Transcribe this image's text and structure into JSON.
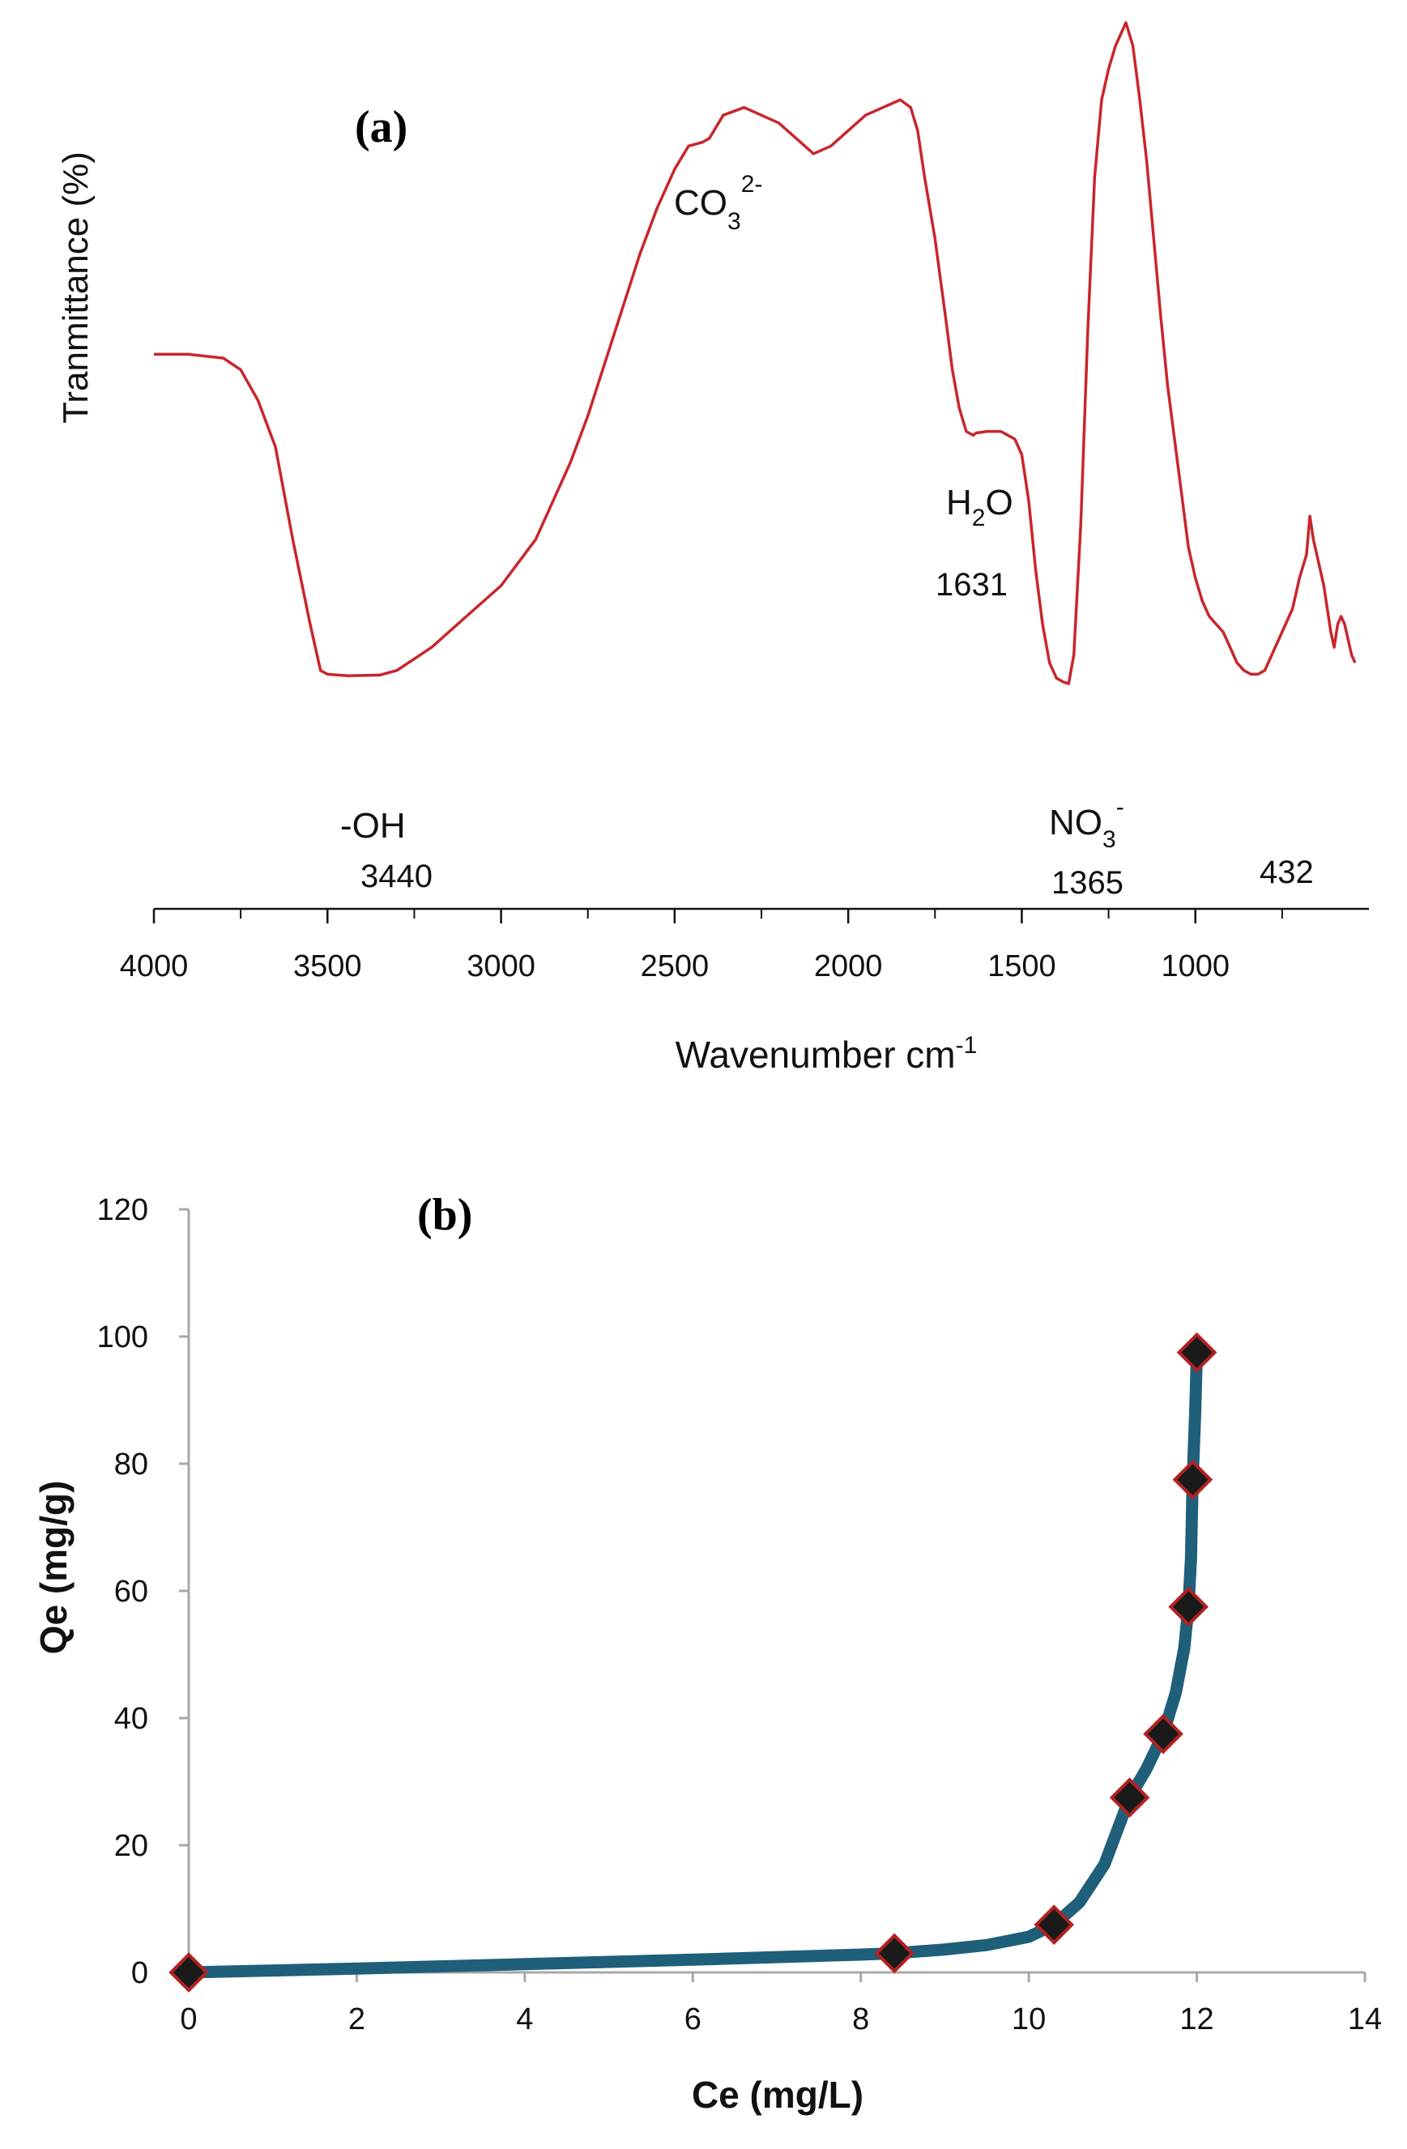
{
  "chart_data": [
    {
      "panel": "(a)",
      "type": "line",
      "xlabel": "Wavenumber cm",
      "xlabel_sup": "-1",
      "ylabel": "Tranmittance (%)",
      "xlim": [
        4000,
        500
      ],
      "x_ticks": [
        "4000",
        "3500",
        "3000",
        "2500",
        "2000",
        "1500",
        "1000"
      ],
      "line_color": "#c8262c",
      "series": [
        {
          "x": [
            4000,
            3900,
            3800,
            3750,
            3700,
            3650,
            3600,
            3550,
            3520,
            3500,
            3440,
            3350,
            3300,
            3200,
            3100,
            3000,
            2950,
            2900,
            2850,
            2800,
            2750,
            2700,
            2650,
            2600,
            2550,
            2500,
            2460,
            2420,
            2400,
            2360,
            2300,
            2250,
            2200,
            2150,
            2100,
            2050,
            2000,
            1950,
            1900,
            1850,
            1820,
            1800,
            1780,
            1750,
            1720,
            1700,
            1680,
            1660,
            1640,
            1631,
            1600,
            1560,
            1540,
            1520,
            1500,
            1480,
            1460,
            1440,
            1420,
            1400,
            1380,
            1365,
            1350,
            1330,
            1310,
            1290,
            1270,
            1250,
            1230,
            1210,
            1200,
            1180,
            1160,
            1140,
            1120,
            1100,
            1080,
            1060,
            1040,
            1020,
            1000,
            980,
            960,
            940,
            920,
            900,
            880,
            860,
            840,
            820,
            800,
            780,
            760,
            740,
            720,
            700,
            680,
            670,
            660,
            650,
            640,
            630,
            620,
            610,
            600,
            590,
            580,
            570,
            560,
            550,
            540
          ],
          "y": [
            57,
            57,
            56.5,
            55,
            51,
            45,
            33,
            22,
            16,
            15.5,
            15.3,
            15.4,
            16,
            19,
            23,
            27,
            30,
            33,
            38,
            43,
            49,
            56,
            63,
            70,
            76,
            81,
            84,
            84.5,
            85,
            88,
            89,
            88,
            87,
            85,
            83,
            84,
            86,
            88,
            89,
            90,
            89,
            86,
            80,
            72,
            62,
            55,
            50,
            47,
            46.5,
            46.8,
            47,
            47,
            46.5,
            46,
            44,
            38,
            29,
            22,
            17,
            15,
            14.5,
            14.3,
            18,
            35,
            60,
            80,
            90,
            94,
            97,
            99,
            100,
            97,
            90,
            82,
            72,
            62,
            53,
            46,
            39,
            32,
            28,
            25,
            23,
            22,
            21,
            19,
            17,
            16,
            15.5,
            15.5,
            16,
            18,
            20,
            22,
            24,
            28,
            31,
            36,
            33,
            31,
            29,
            27,
            24,
            21,
            19,
            22,
            23,
            22,
            20,
            18,
            17
          ]
        }
      ],
      "annotations": [
        {
          "label": "-OH",
          "number": "3440"
        },
        {
          "label": "CO",
          "sub": "3",
          "sup": "2-",
          "number": ""
        },
        {
          "label": "H",
          "sub": "2",
          "after": "O",
          "number": "1631"
        },
        {
          "label": "NO",
          "sub": "3",
          "sup": "-",
          "number": "1365"
        },
        {
          "label": "",
          "number": "432"
        }
      ]
    },
    {
      "panel": "(b)",
      "type": "scatter",
      "xlabel": "Ce  (mg/L)",
      "ylabel": "Qe  (mg/g)",
      "xlim": [
        0,
        14
      ],
      "ylim": [
        0,
        120
      ],
      "x_ticks": [
        "0",
        "2",
        "4",
        "6",
        "8",
        "10",
        "12",
        "14"
      ],
      "y_ticks": [
        "0",
        "20",
        "40",
        "60",
        "80",
        "100",
        "120"
      ],
      "grid": false,
      "line_color": "#1f5f7a",
      "marker_color": "#1a1a1a",
      "marker_edge_color": "#b22222",
      "points": {
        "x": [
          0,
          8.4,
          10.3,
          11.2,
          11.6,
          11.9,
          11.95,
          12.0
        ],
        "y": [
          0,
          3,
          7.5,
          27.5,
          37.5,
          57.5,
          77.5,
          97.5
        ]
      },
      "curve": {
        "x": [
          0,
          2,
          4,
          6,
          8,
          8.4,
          9,
          9.5,
          10,
          10.3,
          10.6,
          10.9,
          11.2,
          11.4,
          11.6,
          11.75,
          11.85,
          11.9,
          11.93,
          11.95,
          11.98,
          12.0
        ],
        "y": [
          0,
          0.6,
          1.3,
          2.0,
          2.8,
          3.0,
          3.6,
          4.3,
          5.6,
          7.5,
          11,
          17,
          27.5,
          32,
          37.5,
          44,
          51,
          57.5,
          65,
          77.5,
          88,
          97.5
        ]
      }
    }
  ]
}
